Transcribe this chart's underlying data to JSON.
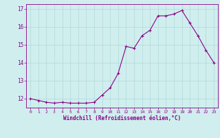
{
  "x": [
    0,
    1,
    2,
    3,
    4,
    5,
    6,
    7,
    8,
    9,
    10,
    11,
    12,
    13,
    14,
    15,
    16,
    17,
    18,
    19,
    20,
    21,
    22,
    23
  ],
  "y": [
    12.0,
    11.9,
    11.8,
    11.75,
    11.8,
    11.75,
    11.75,
    11.75,
    11.8,
    12.2,
    12.6,
    13.4,
    14.9,
    14.8,
    15.5,
    15.8,
    16.6,
    16.6,
    16.7,
    16.9,
    16.2,
    15.5,
    14.7,
    14.0
  ],
  "line_color": "#880088",
  "marker": "+",
  "marker_size": 3,
  "marker_lw": 0.8,
  "line_width": 0.8,
  "bg_color": "#d0eeee",
  "grid_color": "#b0d8d8",
  "xlabel": "Windchill (Refroidissement éolien,°C)",
  "xlabel_color": "#880088",
  "tick_color": "#880088",
  "ylim": [
    11.5,
    17.25
  ],
  "yticks": [
    12,
    13,
    14,
    15,
    16,
    17
  ],
  "xticks": [
    0,
    1,
    2,
    3,
    4,
    5,
    6,
    7,
    8,
    9,
    10,
    11,
    12,
    13,
    14,
    15,
    16,
    17,
    18,
    19,
    20,
    21,
    22,
    23
  ],
  "xtick_fontsize": 4.5,
  "ytick_fontsize": 5.5,
  "xlabel_fontsize": 5.5
}
